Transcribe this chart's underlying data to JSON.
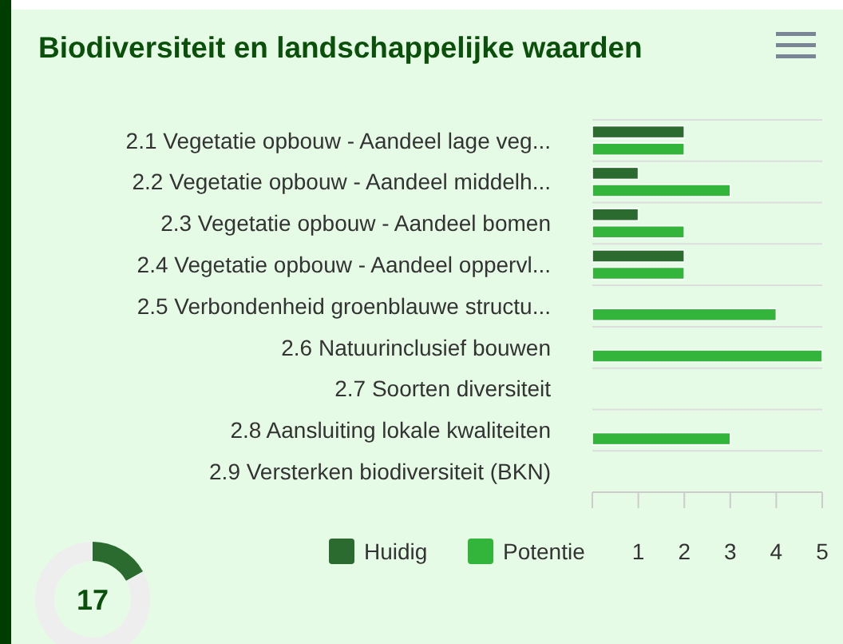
{
  "chart_data": [
    {
      "type": "bar",
      "orientation": "horizontal",
      "title": "Biodiversiteit en landschappelijke waarden",
      "categories": [
        "2.1 Vegetatie opbouw - Aandeel lage veg...",
        "2.2 Vegetatie opbouw - Aandeel middelh...",
        "2.3 Vegetatie opbouw - Aandeel bomen",
        "2.4 Vegetatie opbouw - Aandeel oppervl...",
        "2.5 Verbondenheid groenblauwe structu...",
        "2.6 Natuurinclusief bouwen",
        "2.7 Soorten diversiteit",
        "2.8 Aansluiting lokale kwaliteiten",
        "2.9 Versterken biodiversiteit (BKN)"
      ],
      "series": [
        {
          "name": "Huidig",
          "color": "#2b6b2f",
          "values": [
            2,
            1,
            1,
            2,
            0,
            0,
            0,
            0,
            0
          ]
        },
        {
          "name": "Potentie",
          "color": "#33b53c",
          "values": [
            2,
            3,
            2,
            2,
            4,
            5,
            0,
            3,
            0
          ]
        }
      ],
      "xlim": [
        0,
        5
      ],
      "xticks": [
        {
          "value": 0,
          "label": null
        },
        1,
        2,
        3,
        4,
        5
      ],
      "grid": "y",
      "legend": "bottom"
    },
    {
      "type": "donut",
      "categories": [
        null,
        null
      ],
      "values": [
        17,
        83
      ],
      "colors": [
        "#2b6b2f",
        "#eeeeee"
      ],
      "annotations": [
        "17"
      ]
    }
  ]
}
